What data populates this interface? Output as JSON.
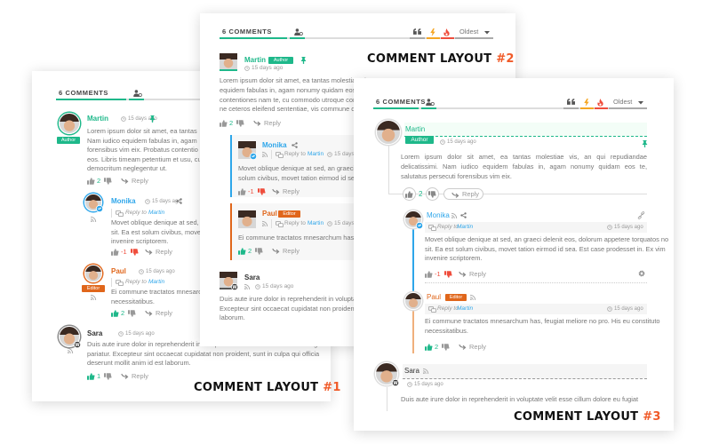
{
  "colors": {
    "green": "#1eb88a",
    "blue": "#2ea6ea",
    "orange": "#e0661b",
    "red": "#ef4d3c",
    "title_accent": "#f05a28"
  },
  "layouts": [
    {
      "title": "COMMENT LAYOUT",
      "number": "#1",
      "tab_label": "6 COMMENTS",
      "comments": [
        {
          "author": "Martin",
          "badge": "Author",
          "time": "15 days ago",
          "votes": "2",
          "reply": "Reply",
          "lines": [
            "Lorem ipsum dolor sit amet, ea tantas",
            "Nam iudico equidem fabulas in, agam",
            "forensibus vim eix. Probatus contentio",
            "eos. Libris timeam petentium et usu, cu",
            "democritum neglegentur ut."
          ]
        },
        {
          "author": "Monika",
          "time": "15 days ago",
          "reply_to_label": "Reply to",
          "reply_to": "Martin",
          "votes": "-1",
          "reply": "Reply",
          "lines": [
            "Movet oblique denique at sed, an",
            "sit. Ea est solum civibus, movet t",
            "invenire scriptorem."
          ]
        },
        {
          "author": "Paul",
          "badge": "Editor",
          "time": "15 days ago",
          "reply_to_label": "Reply to",
          "reply_to": "Martin",
          "votes": "2",
          "reply": "Reply",
          "lines": [
            "Ei commune tractatos mnesarchu",
            "necessitatibus."
          ]
        },
        {
          "author": "Sara",
          "time": "15 days ago",
          "votes": "1",
          "reply": "Reply",
          "lines": [
            "Duis aute irure dolor in reprehenderit in voluptate velit esse cillum dolore eu fugiat nulla",
            "pariatur. Excepteur sint occaecat cupidatat non proident, sunt in culpa qui officia",
            "deserunt mollit anim id est laborum."
          ]
        }
      ]
    },
    {
      "title": "COMMENT LAYOUT",
      "number": "#2",
      "tab_label": "6 COMMENTS",
      "sort": "Oldest",
      "comments": [
        {
          "author": "Martin",
          "badge": "Author",
          "time": "15 days ago",
          "votes": "2",
          "reply": "Reply",
          "lines": [
            "Lorem ipsum dolor sit amet, ea tantas molestiae vis,",
            "equidem fabulas in, agam nonumy quidam eos te,",
            "contentiones nam te, cu commodo utroque consequat",
            "ne ceteros eleifend sententiae, vis commune democritum"
          ]
        },
        {
          "author": "Monika",
          "time": "15 days ago",
          "reply_to_label": "Reply to",
          "reply_to": "Martin",
          "votes": "-1",
          "reply": "Reply",
          "lines": [
            "Movet oblique denique at sed, an graeci delenit eos,",
            "solum civibus, movet tation eirmod id sea. Est"
          ]
        },
        {
          "author": "Paul",
          "badge": "Editor",
          "time": "15 days ago",
          "reply_to_label": "Reply to",
          "reply_to": "Martin",
          "votes": "2",
          "reply": "Reply",
          "lines": [
            "Ei commune tractatos mnesarchum has, feugiat"
          ]
        },
        {
          "author": "Sara",
          "time": "15 days ago",
          "lines": [
            "Duis aute irure dolor in reprehenderit in voluptate",
            "Excepteur sint occaecat cupidatat non proident, sunt",
            "laborum."
          ]
        }
      ]
    },
    {
      "title": "COMMENT LAYOUT",
      "number": "#3",
      "tab_label": "6 COMMENTS",
      "sort": "Oldest",
      "comments": [
        {
          "author": "Martin",
          "badge": "Author",
          "time": "15 days ago",
          "votes": "2",
          "reply": "Reply",
          "lines": [
            "Lorem ipsum dolor sit amet, ea tantas molestiae vis, an qui repudiandae",
            "delicatissimi. Nam iudico equidem fabulas in, agam nonumy quidam eos te,",
            "salutatus persecuti forensibus vim eix."
          ]
        },
        {
          "author": "Monika",
          "time": "15 days ago",
          "reply_to_label": "Reply to",
          "reply_to": "Martin",
          "votes": "-1",
          "reply": "Reply",
          "lines": [
            "Movet oblique denique at sed, an graeci delenit eos, dolorum appetere torquatos no",
            "sit. Ea est solum civibus, movet tation eirmod id sea. Est case prodesset in. Ex vim",
            "invenire scriptorem."
          ]
        },
        {
          "author": "Paul",
          "badge": "Editor",
          "time": "15 days ago",
          "reply_to_label": "Reply to",
          "reply_to": "Martin",
          "votes": "2",
          "reply": "Reply",
          "lines": [
            "Ei commune tractatos mnesarchum has, feugiat meliore no pro. His eu constituto",
            "necessitatibus."
          ]
        },
        {
          "author": "Sara",
          "time": "15 days ago",
          "lines": [
            "Duis aute irure dolor in reprehenderit in voluptate velit esse cillum dolore eu fugiat"
          ]
        }
      ]
    }
  ]
}
